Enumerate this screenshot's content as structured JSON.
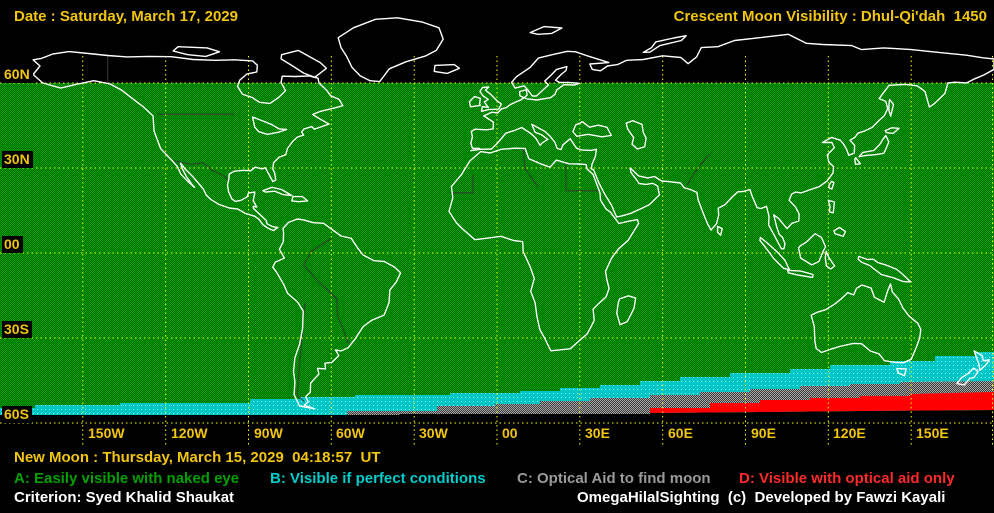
{
  "header": {
    "date_label": "Date : Saturday, March 17, 2029",
    "title": "Crescent Moon Visibility : Dhul-Qi'dah  1450"
  },
  "map": {
    "latitude_labels": [
      "60N",
      "30N",
      "00",
      "30S",
      "60S"
    ],
    "longitude_labels": [
      "150W",
      "120W",
      "90W",
      "60W",
      "30W",
      "00",
      "30E",
      "60E",
      "90E",
      "120E",
      "150E"
    ],
    "zones": [
      {
        "key": "A",
        "meaning": "Easily visible with naked eye",
        "fill": "green"
      },
      {
        "key": "B",
        "meaning": "Visible if perfect conditions",
        "fill": "cyan"
      },
      {
        "key": "C",
        "meaning": "Optical Aid to find moon",
        "fill": "gray"
      },
      {
        "key": "D",
        "meaning": "Visible with optical aid only",
        "fill": "red"
      }
    ]
  },
  "footer": {
    "new_moon": "New Moon : Thursday, March 15, 2029  04:18:57  UT",
    "legend": [
      {
        "key": "A",
        "label": "A: Easily visible with naked eye"
      },
      {
        "key": "B",
        "label": "B: Visible if perfect conditions"
      },
      {
        "key": "C",
        "label": "C: Optical Aid to find moon"
      },
      {
        "key": "D",
        "label": "D: Visible with optical aid only"
      }
    ],
    "criterion": "Criterion: Syed Khalid Shaukat",
    "credit": "OmegaHilalSighting  (c)  Developed by Fawzi Kayali"
  },
  "colors": {
    "gold": "#F2C50F",
    "white": "#FFFFFF",
    "grid_yellow": "#FFFF00",
    "coast": "#FFFFFF",
    "border": "#3A3A3A",
    "zone_a": "#00A400",
    "zone_a_dark": "#006600",
    "zone_b": "#00C6C6",
    "zone_b_light": "#8CFFFF",
    "zone_c": "#A6A6A6",
    "zone_c_dark": "#3C3C3C",
    "zone_d": "#FF0000",
    "legend_a": "#00A000",
    "legend_b": "#00CCCC",
    "legend_c": "#9A9A9A",
    "legend_d": "#FF2A2A"
  }
}
